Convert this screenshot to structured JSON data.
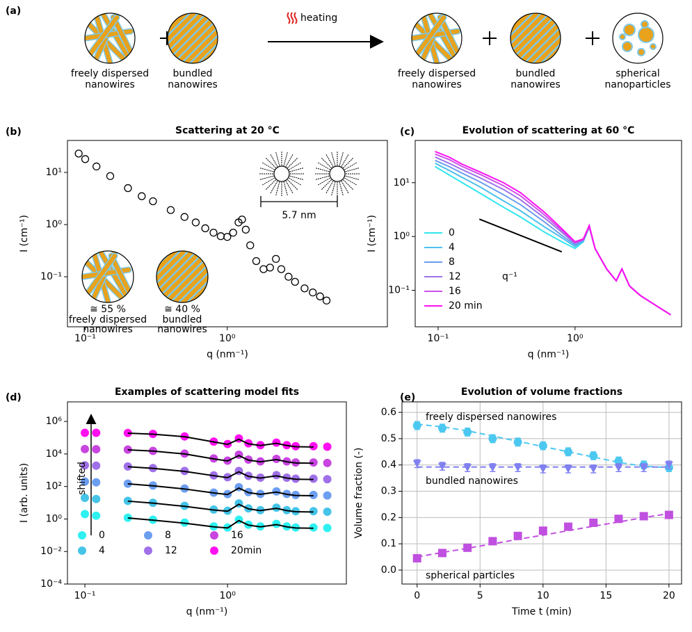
{
  "schematic": {
    "label": "(a)",
    "arrow_label": "heating",
    "items": [
      [
        "freely dispersed",
        "nanowires"
      ],
      [
        "bundled",
        "nanowires"
      ],
      [
        "freely dispersed",
        "nanowires"
      ],
      [
        "bundled",
        "nanowires"
      ],
      [
        "spherical",
        "nanoparticles"
      ]
    ]
  },
  "chart_data": [
    {
      "type": "scatter",
      "panel_label": "(b)",
      "title": "Scattering at 20 °C",
      "xlabel": "q (nm⁻¹)",
      "ylabel": "I (cm⁻¹)",
      "xscale": "log",
      "yscale": "log",
      "xlim": [
        0.075,
        13.4
      ],
      "ylim": [
        0.011,
        41
      ],
      "xticks": [
        {
          "value": 0.1,
          "label": "10⁻¹"
        },
        {
          "value": 1,
          "label": "10⁰"
        }
      ],
      "yticks": [
        {
          "value": 0.1,
          "label": "10⁻¹"
        },
        {
          "value": 1,
          "label": "10⁰"
        },
        {
          "value": 10,
          "label": "10¹"
        }
      ],
      "x": [
        0.09,
        0.1,
        0.12,
        0.15,
        0.2,
        0.25,
        0.3,
        0.4,
        0.5,
        0.6,
        0.7,
        0.8,
        0.9,
        1.0,
        1.1,
        1.2,
        1.27,
        1.35,
        1.45,
        1.6,
        1.8,
        2.0,
        2.2,
        2.4,
        2.7,
        3.0,
        3.5,
        4.0,
        4.5,
        5.0
      ],
      "series": [
        {
          "color": "#000000",
          "values": [
            23,
            18,
            13,
            8.5,
            5,
            3.5,
            2.8,
            1.9,
            1.4,
            1.1,
            0.85,
            0.7,
            0.6,
            0.58,
            0.7,
            1.1,
            1.25,
            0.8,
            0.4,
            0.2,
            0.14,
            0.15,
            0.22,
            0.14,
            0.1,
            0.08,
            0.06,
            0.05,
            0.042,
            0.035
          ]
        }
      ],
      "annotations": [
        "5.7 nm",
        "≅ 55 %",
        "freely dispersed",
        "nanowires",
        "≅ 40 %",
        "bundled",
        "nanowires"
      ]
    },
    {
      "type": "line",
      "panel_label": "(c)",
      "title": "Evolution of scattering at 60 °C",
      "xlabel": "q (nm⁻¹)",
      "ylabel": "I (cm⁻¹)",
      "xscale": "log",
      "yscale": "log",
      "xlim": [
        0.068,
        6
      ],
      "ylim": [
        0.021,
        61
      ],
      "legend": "lower left",
      "xticks": [
        {
          "value": 0.1,
          "label": "10⁻¹"
        },
        {
          "value": 1,
          "label": "10⁰"
        }
      ],
      "yticks": [
        {
          "value": 0.1,
          "label": "10⁻¹"
        },
        {
          "value": 1,
          "label": "10⁰"
        },
        {
          "value": 10,
          "label": "10¹"
        }
      ],
      "x": [
        0.095,
        0.12,
        0.15,
        0.2,
        0.3,
        0.4,
        0.6,
        0.8,
        1.0,
        1.15,
        1.27,
        1.4,
        1.7,
        2.0,
        2.2,
        2.5,
        3,
        4,
        5
      ],
      "series": [
        {
          "name": "0",
          "color": "#2fe6ee",
          "values": [
            20,
            14,
            10,
            6.5,
            3.5,
            2.3,
            1.2,
            0.8,
            0.6,
            0.8,
            1.5,
            0.6,
            0.25,
            0.15,
            0.25,
            0.12,
            0.08,
            0.05,
            0.035
          ]
        },
        {
          "name": "4",
          "color": "#4cc0ee",
          "values": [
            23,
            17,
            12.5,
            8.5,
            4.6,
            3.0,
            1.5,
            0.95,
            0.65,
            0.82,
            1.5,
            0.6,
            0.25,
            0.15,
            0.25,
            0.12,
            0.08,
            0.05,
            0.035
          ]
        },
        {
          "name": "8",
          "color": "#6b9cee",
          "values": [
            26,
            20,
            15,
            10.5,
            6,
            3.9,
            1.85,
            1.05,
            0.7,
            0.85,
            1.5,
            0.6,
            0.25,
            0.15,
            0.25,
            0.12,
            0.08,
            0.05,
            0.035
          ]
        },
        {
          "name": "12",
          "color": "#9c72ea",
          "values": [
            30,
            23,
            17.5,
            12.5,
            7.5,
            4.8,
            2.2,
            1.2,
            0.74,
            0.87,
            1.55,
            0.6,
            0.25,
            0.15,
            0.25,
            0.12,
            0.08,
            0.05,
            0.035
          ]
        },
        {
          "name": "16",
          "color": "#cc4fe8",
          "values": [
            34,
            27,
            20,
            14.5,
            8.8,
            5.7,
            2.5,
            1.3,
            0.78,
            0.88,
            1.55,
            0.6,
            0.25,
            0.15,
            0.25,
            0.12,
            0.08,
            0.05,
            0.035
          ]
        },
        {
          "name": "20 min",
          "color": "#ff10f0",
          "values": [
            38,
            30,
            22,
            16,
            10,
            6.5,
            2.8,
            1.4,
            0.8,
            0.9,
            1.6,
            0.6,
            0.25,
            0.15,
            0.25,
            0.12,
            0.08,
            0.05,
            0.035
          ]
        }
      ],
      "guide": {
        "label": "q⁻¹",
        "x": [
          0.2,
          0.8
        ],
        "y": [
          2.1,
          0.52
        ]
      }
    },
    {
      "type": "scatter",
      "panel_label": "(d)",
      "title": "Examples of scattering model fits",
      "xlabel": "q (nm⁻¹)",
      "ylabel": "I (arb. units)",
      "xscale": "log",
      "yscale": "log",
      "xlim": [
        0.0755,
        6.8
      ],
      "ylim": [
        0.0001,
        16000000
      ],
      "legend": "lower left",
      "legend_columns": 3,
      "annotation": "shifted",
      "xticks": [
        {
          "value": 0.1,
          "label": "10⁻¹"
        },
        {
          "value": 1,
          "label": "10⁰"
        }
      ],
      "yticks": [
        {
          "value": 0.0001,
          "label": "10⁻⁴"
        },
        {
          "value": 0.01,
          "label": "10⁻²"
        },
        {
          "value": 1,
          "label": "10⁰"
        },
        {
          "value": 100,
          "label": "10²"
        },
        {
          "value": 10000,
          "label": "10⁴"
        },
        {
          "value": 1000000,
          "label": "10⁶"
        }
      ],
      "x": [
        0.1,
        0.12,
        0.2,
        0.3,
        0.5,
        0.8,
        1.0,
        1.2,
        1.4,
        1.7,
        2.2,
        2.6,
        3,
        4,
        5
      ],
      "fit_color": "#000000",
      "series": [
        {
          "name": "0",
          "color": "#2ff0f0",
          "values": [
            2,
            1.6,
            1.2,
            0.9,
            0.6,
            0.35,
            0.3,
            0.9,
            0.45,
            0.35,
            0.5,
            0.35,
            0.3,
            0.3,
            0.28
          ],
          "fit_values": [
            null,
            null,
            1.15,
            0.85,
            0.55,
            0.33,
            0.28,
            0.8,
            0.42,
            0.33,
            0.45,
            0.33,
            0.28,
            0.27,
            null
          ]
        },
        {
          "name": "4",
          "color": "#45c4e8",
          "values": [
            20,
            17,
            13,
            10,
            6.5,
            3.8,
            3.2,
            9,
            4.5,
            3.5,
            5,
            3.5,
            3,
            3,
            2.8
          ],
          "fit_values": [
            null,
            null,
            12.5,
            9.5,
            6,
            3.6,
            3,
            8,
            4.2,
            3.3,
            4.5,
            3.3,
            2.8,
            2.7,
            null
          ]
        },
        {
          "name": "8",
          "color": "#6c9ef0",
          "values": [
            200,
            180,
            150,
            115,
            75,
            42,
            34,
            90,
            45,
            35,
            50,
            35,
            30,
            30,
            28
          ],
          "fit_values": [
            null,
            null,
            145,
            110,
            70,
            40,
            32,
            80,
            42,
            33,
            45,
            33,
            28,
            27,
            null
          ]
        },
        {
          "name": "12",
          "color": "#a070e8",
          "values": [
            2000,
            1900,
            1700,
            1350,
            900,
            480,
            370,
            900,
            450,
            350,
            500,
            350,
            300,
            300,
            280
          ],
          "fit_values": [
            null,
            null,
            1650,
            1300,
            850,
            460,
            350,
            800,
            420,
            330,
            450,
            330,
            280,
            270,
            null
          ]
        },
        {
          "name": "16",
          "color": "#c845e0",
          "values": [
            20000,
            19500,
            18500,
            15500,
            10500,
            5300,
            3900,
            9000,
            4500,
            3500,
            5000,
            3500,
            3000,
            3000,
            2800
          ],
          "fit_values": [
            null,
            null,
            18000,
            15000,
            10000,
            5000,
            3700,
            8000,
            4200,
            3300,
            4500,
            3300,
            2800,
            2700,
            null
          ]
        },
        {
          "name": "20min",
          "color": "#ff10f0",
          "values": [
            200000,
            200000,
            195000,
            170000,
            120000,
            58000,
            41000,
            90000,
            45000,
            35000,
            50000,
            35000,
            30000,
            30000,
            28000
          ],
          "fit_values": [
            null,
            null,
            190000,
            165000,
            115000,
            55000,
            39000,
            80000,
            42000,
            33000,
            45000,
            33000,
            28000,
            27000,
            null
          ]
        }
      ]
    },
    {
      "type": "scatter",
      "panel_label": "(e)",
      "title": "Evolution of volume fractions",
      "xlabel": "Time t (min)",
      "ylabel": "Volume fraction (-)",
      "xscale": "linear",
      "yscale": "linear",
      "grid": true,
      "xlim": [
        -1.2,
        21
      ],
      "ylim": [
        -0.053,
        0.64
      ],
      "xticks": [
        0,
        5,
        10,
        15,
        20
      ],
      "yticks": [
        {
          "value": 0,
          "label": "0.0"
        },
        0.1,
        0.2,
        0.3,
        0.4,
        0.5,
        0.6
      ],
      "x": [
        0,
        2,
        4,
        6,
        8,
        10,
        12,
        14,
        16,
        18,
        20
      ],
      "series": [
        {
          "name": "freely dispersed nanowires",
          "color": "#4cc8f0",
          "marker": "circle",
          "values": [
            0.55,
            0.54,
            0.525,
            0.5,
            0.487,
            0.473,
            0.45,
            0.435,
            0.415,
            0.4,
            0.39
          ],
          "errors": [
            0.015,
            0.015,
            0.015,
            0.015,
            0.015,
            0.015,
            0.015,
            0.015,
            0.015,
            0.015,
            0.015
          ],
          "fit_values": [
            0.555,
            0.545,
            0.53,
            0.51,
            0.49,
            0.47,
            0.45,
            0.43,
            0.41,
            0.395,
            0.39
          ]
        },
        {
          "name": "bundled nanowires",
          "color": "#8080f0",
          "marker": "triangle-down",
          "values": [
            0.405,
            0.395,
            0.39,
            0.39,
            0.39,
            0.385,
            0.385,
            0.385,
            0.39,
            0.39,
            0.4
          ],
          "errors": [
            0.015,
            0.015,
            0.015,
            0.015,
            0.015,
            0.015,
            0.015,
            0.015,
            0.015,
            0.015,
            0.015
          ],
          "fit_values": [
            0.392,
            0.392,
            0.392,
            0.392,
            0.392,
            0.392,
            0.392,
            0.392,
            0.392,
            0.392,
            0.392
          ]
        },
        {
          "name": "spherical particles",
          "color": "#c050e0",
          "marker": "square",
          "values": [
            0.045,
            0.065,
            0.085,
            0.11,
            0.13,
            0.15,
            0.165,
            0.18,
            0.195,
            0.205,
            0.21
          ],
          "errors": [
            0.012,
            0.012,
            0.012,
            0.012,
            0.012,
            0.012,
            0.012,
            0.012,
            0.012,
            0.012,
            0.012
          ],
          "fit_values": [
            0.05,
            0.067,
            0.083,
            0.1,
            0.117,
            0.133,
            0.15,
            0.167,
            0.183,
            0.2,
            0.215
          ]
        }
      ]
    }
  ]
}
